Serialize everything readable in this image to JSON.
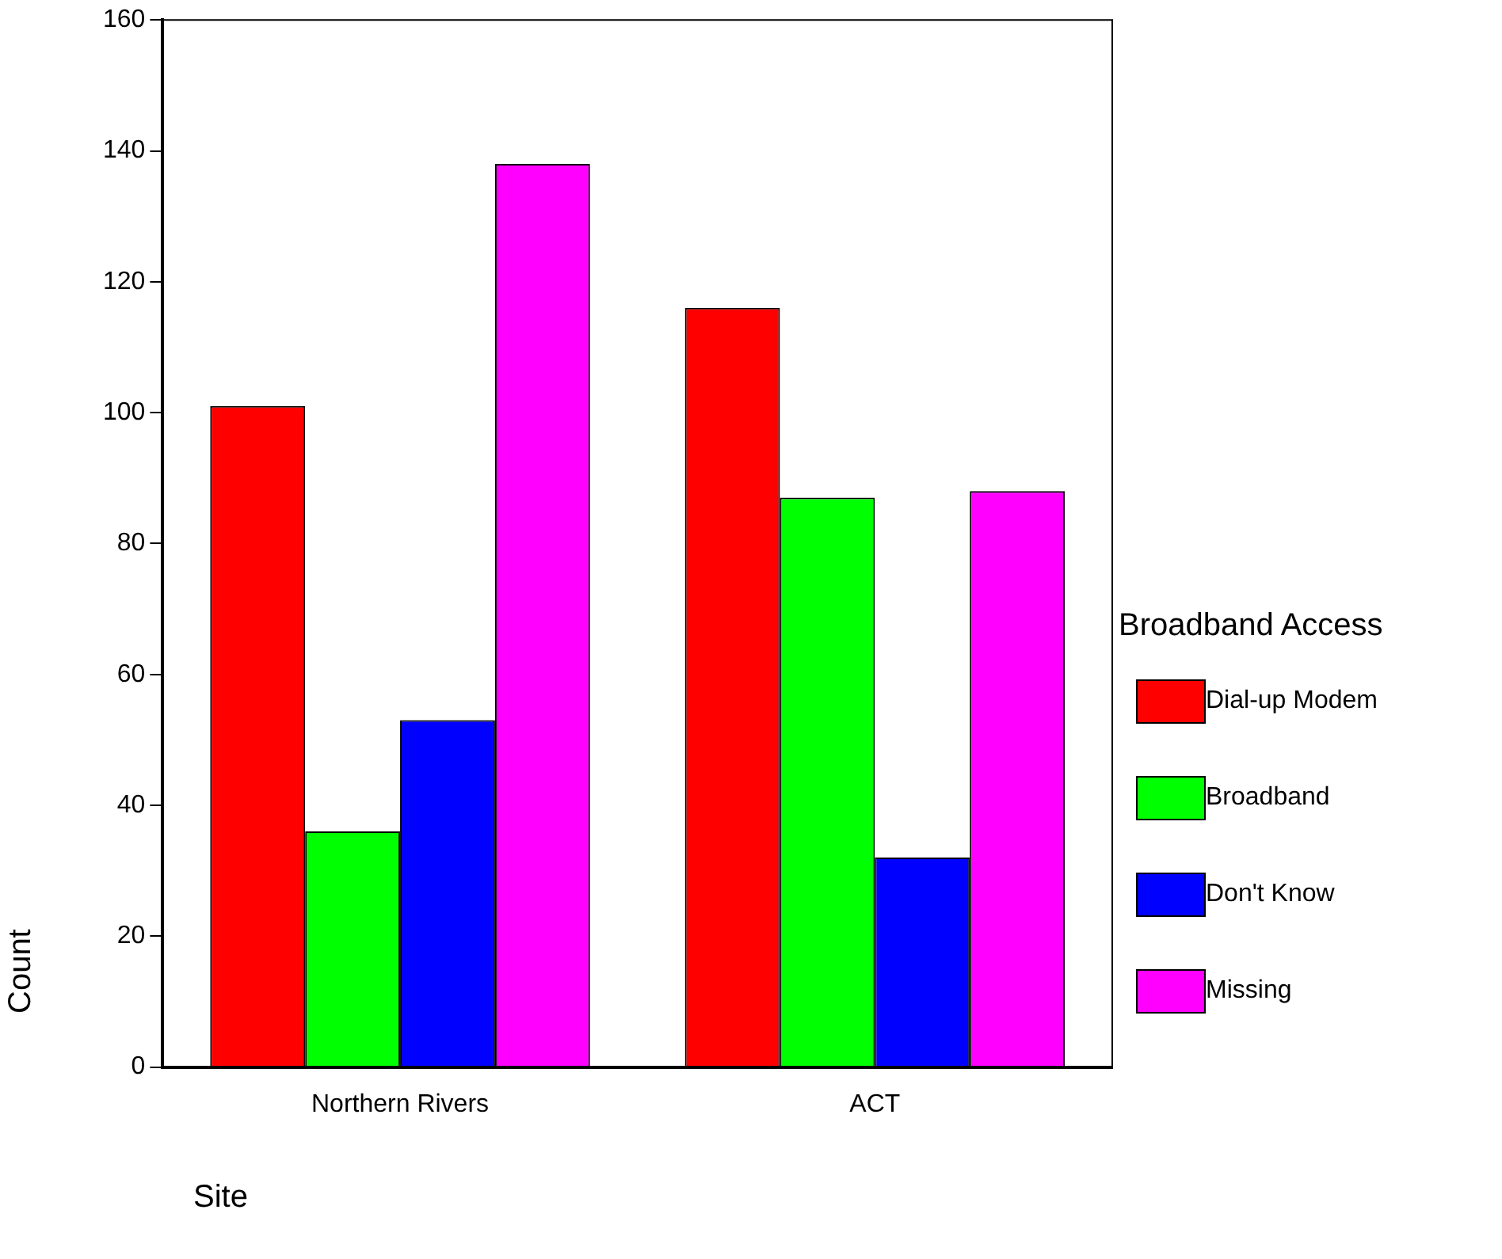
{
  "chart_data": {
    "type": "bar",
    "xlabel": "Site",
    "ylabel": "Count",
    "legend_title": "Broadband Access",
    "categories": [
      "Northern Rivers",
      "ACT"
    ],
    "series": [
      {
        "name": "Dial-up Modem",
        "color": "#ff0000",
        "values": [
          101,
          116
        ]
      },
      {
        "name": "Broadband",
        "color": "#00ff00",
        "values": [
          36,
          87
        ]
      },
      {
        "name": "Don't Know",
        "color": "#0000ff",
        "values": [
          53,
          32
        ]
      },
      {
        "name": "Missing",
        "color": "#ff00ff",
        "values": [
          138,
          88
        ]
      }
    ],
    "ylim": [
      0,
      160
    ],
    "yticks": [
      0,
      20,
      40,
      60,
      80,
      100,
      120,
      140,
      160
    ],
    "grid": false,
    "legend": "right"
  }
}
